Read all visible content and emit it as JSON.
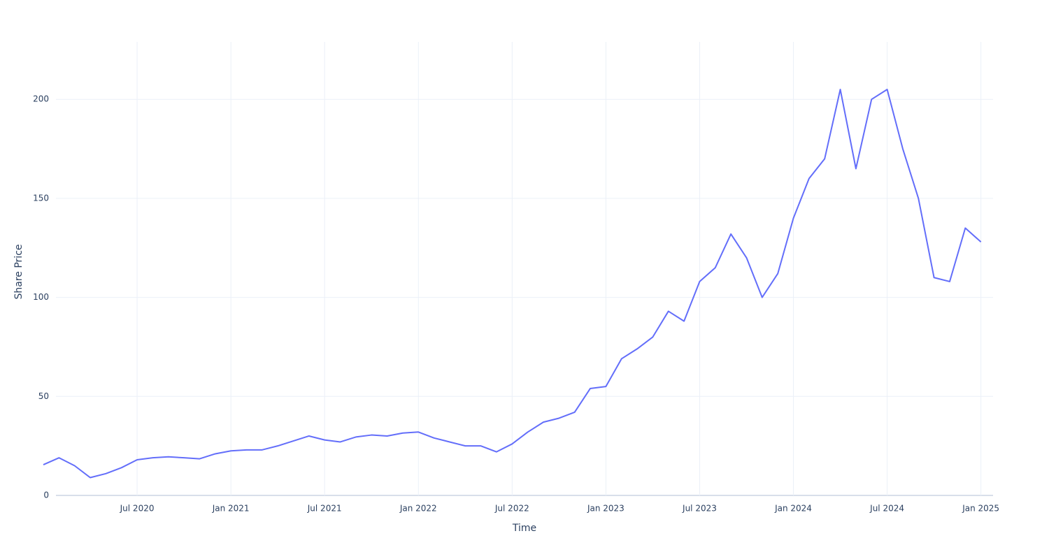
{
  "chart_data": {
    "type": "line",
    "x_label": "Time",
    "y_label": "Share Price",
    "x": [
      "2020-01",
      "2020-02",
      "2020-03",
      "2020-04",
      "2020-05",
      "2020-06",
      "2020-07",
      "2020-08",
      "2020-09",
      "2020-10",
      "2020-11",
      "2020-12",
      "2021-01",
      "2021-02",
      "2021-03",
      "2021-04",
      "2021-05",
      "2021-06",
      "2021-07",
      "2021-08",
      "2021-09",
      "2021-10",
      "2021-11",
      "2021-12",
      "2022-01",
      "2022-02",
      "2022-03",
      "2022-04",
      "2022-05",
      "2022-06",
      "2022-07",
      "2022-08",
      "2022-09",
      "2022-10",
      "2022-11",
      "2022-12",
      "2023-01",
      "2023-02",
      "2023-03",
      "2023-04",
      "2023-05",
      "2023-06",
      "2023-07",
      "2023-08",
      "2023-09",
      "2023-10",
      "2023-11",
      "2023-12",
      "2024-01",
      "2024-02",
      "2024-03",
      "2024-04",
      "2024-05",
      "2024-06",
      "2024-07",
      "2024-08",
      "2024-09",
      "2024-10",
      "2024-11",
      "2024-12",
      "2025-01"
    ],
    "series": [
      {
        "color": "#636efa",
        "values": [
          15.5,
          19,
          15,
          9,
          11,
          14,
          18,
          19,
          19.5,
          19,
          18.5,
          21,
          22.5,
          23,
          23,
          25,
          27.5,
          30,
          28,
          27,
          29.5,
          30.5,
          30,
          31.5,
          32,
          29,
          27,
          25,
          25,
          22,
          26,
          32,
          37,
          39,
          42,
          54,
          55,
          69,
          74,
          80,
          93,
          88,
          108,
          115,
          132,
          120,
          100,
          112,
          140,
          160,
          170,
          205,
          165,
          200,
          205,
          175,
          150,
          110,
          108,
          135,
          128
        ]
      }
    ],
    "xlim": [
      "2020-01",
      "2025-02"
    ],
    "ylim": [
      0,
      229
    ],
    "xticks": [
      {
        "value": "2020-07",
        "label": "Jul 2020"
      },
      {
        "value": "2021-01",
        "label": "Jan 2021"
      },
      {
        "value": "2021-07",
        "label": "Jul 2021"
      },
      {
        "value": "2022-01",
        "label": "Jan 2022"
      },
      {
        "value": "2022-07",
        "label": "Jul 2022"
      },
      {
        "value": "2023-01",
        "label": "Jan 2023"
      },
      {
        "value": "2023-07",
        "label": "Jul 2023"
      },
      {
        "value": "2024-01",
        "label": "Jan 2024"
      },
      {
        "value": "2024-07",
        "label": "Jul 2024"
      },
      {
        "value": "2025-01",
        "label": "Jan 2025"
      }
    ],
    "yticks": [
      0,
      50,
      100,
      150,
      200
    ],
    "grid": true
  }
}
